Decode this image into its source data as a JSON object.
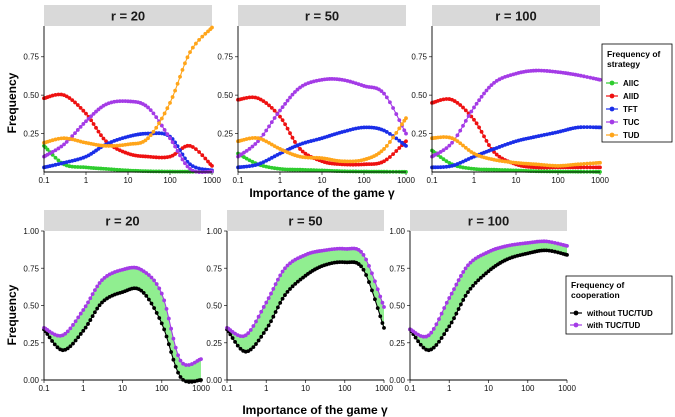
{
  "chart_data": [
    {
      "type": "line",
      "panel_titles": [
        "r = 20",
        "r = 50",
        "r = 100"
      ],
      "xlabel": "Importance of the game γ",
      "ylabel": "Frequency",
      "x_scale": "log",
      "xlim": [
        0.1,
        1000
      ],
      "ylim": [
        0,
        0.95
      ],
      "x_ticks": [
        "0.1",
        "1",
        "10",
        "100",
        "1000"
      ],
      "y_ticks": [
        "0.25",
        "0.50",
        "0.75"
      ],
      "y_tick_values": [
        0.25,
        0.5,
        0.75
      ],
      "grid": false,
      "legend": {
        "title": "Frequency of strategy",
        "position": "right"
      },
      "x": [
        0.1,
        0.3,
        1,
        3,
        10,
        30,
        100,
        300,
        1000
      ],
      "series_styles": [
        {
          "name": "AllC",
          "color": "#2ecc2e"
        },
        {
          "name": "AllD",
          "color": "#ee1111"
        },
        {
          "name": "TFT",
          "color": "#1a2ee8"
        },
        {
          "name": "TUC",
          "color": "#a43be6"
        },
        {
          "name": "TUD",
          "color": "#ffa51a"
        }
      ],
      "panels": [
        {
          "title": "r = 20",
          "series": [
            {
              "name": "AllC",
              "values": [
                0.17,
                0.05,
                0.03,
                0.02,
                0.01,
                0.005,
                0.003,
                0.002,
                0.001
              ]
            },
            {
              "name": "AllD",
              "values": [
                0.48,
                0.5,
                0.38,
                0.2,
                0.12,
                0.1,
                0.1,
                0.17,
                0.04
              ]
            },
            {
              "name": "TFT",
              "values": [
                0.03,
                0.06,
                0.1,
                0.18,
                0.23,
                0.25,
                0.23,
                0.05,
                0.01
              ]
            },
            {
              "name": "TUC",
              "values": [
                0.1,
                0.18,
                0.33,
                0.44,
                0.46,
                0.42,
                0.22,
                0.02,
                0.003
              ]
            },
            {
              "name": "TUD",
              "values": [
                0.19,
                0.22,
                0.19,
                0.17,
                0.18,
                0.22,
                0.45,
                0.78,
                0.94
              ]
            }
          ]
        },
        {
          "title": "r = 50",
          "series": [
            {
              "name": "AllC",
              "values": [
                0.12,
                0.05,
                0.02,
                0.015,
                0.01,
                0.005,
                0.003,
                0.002,
                0.001
              ]
            },
            {
              "name": "AllD",
              "values": [
                0.47,
                0.48,
                0.36,
                0.15,
                0.07,
                0.05,
                0.05,
                0.07,
                0.2
              ]
            },
            {
              "name": "TFT",
              "values": [
                0.03,
                0.05,
                0.12,
                0.18,
                0.22,
                0.26,
                0.29,
                0.27,
                0.17
              ]
            },
            {
              "name": "TUC",
              "values": [
                0.1,
                0.2,
                0.4,
                0.55,
                0.6,
                0.6,
                0.56,
                0.51,
                0.25
              ]
            },
            {
              "name": "TUD",
              "values": [
                0.2,
                0.22,
                0.15,
                0.1,
                0.09,
                0.07,
                0.08,
                0.15,
                0.35
              ]
            }
          ]
        },
        {
          "title": "r = 100",
          "series": [
            {
              "name": "AllC",
              "values": [
                0.14,
                0.05,
                0.02,
                0.015,
                0.01,
                0.005,
                0.003,
                0.002,
                0.001
              ]
            },
            {
              "name": "AllD",
              "values": [
                0.45,
                0.47,
                0.34,
                0.13,
                0.05,
                0.03,
                0.03,
                0.03,
                0.03
              ]
            },
            {
              "name": "TFT",
              "values": [
                0.03,
                0.04,
                0.1,
                0.15,
                0.2,
                0.23,
                0.26,
                0.29,
                0.29
              ]
            },
            {
              "name": "TUC",
              "values": [
                0.1,
                0.19,
                0.42,
                0.58,
                0.64,
                0.66,
                0.65,
                0.63,
                0.6
              ]
            },
            {
              "name": "TUD",
              "values": [
                0.22,
                0.22,
                0.12,
                0.08,
                0.06,
                0.05,
                0.04,
                0.05,
                0.06
              ]
            }
          ]
        }
      ]
    },
    {
      "type": "area",
      "panel_titles": [
        "r = 20",
        "r = 50",
        "r = 100"
      ],
      "xlabel": "Importance of the game γ",
      "ylabel": "Frequency",
      "x_scale": "log",
      "xlim": [
        0.1,
        1000
      ],
      "ylim": [
        0,
        1
      ],
      "x_ticks": [
        "0.1",
        "1",
        "10",
        "100",
        "1000"
      ],
      "y_ticks": [
        "0.00",
        "0.25",
        "0.50",
        "0.75",
        "1.00"
      ],
      "y_tick_values": [
        0,
        0.25,
        0.5,
        0.75,
        1.0
      ],
      "grid": false,
      "fill_between": {
        "color": "#90ee90",
        "between": [
          "without TUC/TUD",
          "with TUC/TUD"
        ]
      },
      "legend": {
        "title": "Frequency of cooperation",
        "position": "right"
      },
      "x": [
        0.1,
        0.3,
        1,
        3,
        10,
        30,
        100,
        300,
        1000
      ],
      "series_styles": [
        {
          "name": "without TUC/TUD",
          "color": "#000000"
        },
        {
          "name": "with TUC/TUD",
          "color": "#a43be6"
        }
      ],
      "panels": [
        {
          "title": "r = 20",
          "series": [
            {
              "name": "without TUC/TUD",
              "values": [
                0.34,
                0.2,
                0.33,
                0.52,
                0.59,
                0.6,
                0.38,
                0.02,
                0.0
              ]
            },
            {
              "name": "with TUC/TUD",
              "values": [
                0.35,
                0.3,
                0.47,
                0.67,
                0.74,
                0.74,
                0.58,
                0.13,
                0.14
              ]
            }
          ]
        },
        {
          "title": "r = 50",
          "series": [
            {
              "name": "without TUC/TUD",
              "values": [
                0.34,
                0.19,
                0.34,
                0.57,
                0.7,
                0.77,
                0.79,
                0.74,
                0.35
              ]
            },
            {
              "name": "with TUC/TUD",
              "values": [
                0.35,
                0.3,
                0.52,
                0.75,
                0.84,
                0.87,
                0.88,
                0.84,
                0.49
              ]
            }
          ]
        },
        {
          "title": "r = 100",
          "series": [
            {
              "name": "without TUC/TUD",
              "values": [
                0.34,
                0.2,
                0.36,
                0.59,
                0.73,
                0.81,
                0.85,
                0.87,
                0.84
              ]
            },
            {
              "name": "with TUC/TUD",
              "values": [
                0.34,
                0.3,
                0.55,
                0.77,
                0.86,
                0.9,
                0.92,
                0.93,
                0.9
              ]
            }
          ]
        }
      ]
    }
  ]
}
